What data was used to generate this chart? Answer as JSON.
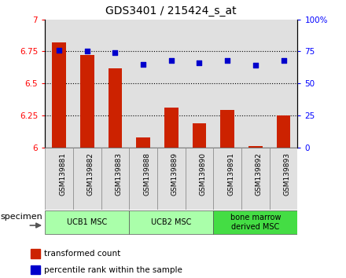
{
  "title": "GDS3401 / 215424_s_at",
  "categories": [
    "GSM139881",
    "GSM139882",
    "GSM139883",
    "GSM139888",
    "GSM139889",
    "GSM139890",
    "GSM139891",
    "GSM139892",
    "GSM139893"
  ],
  "bar_values": [
    6.82,
    6.72,
    6.62,
    6.08,
    6.31,
    6.19,
    6.29,
    6.01,
    6.25
  ],
  "scatter_values": [
    76,
    75,
    74,
    65,
    68,
    66,
    68,
    64,
    68
  ],
  "bar_color": "#cc2200",
  "scatter_color": "#0000cc",
  "ylim_left": [
    6.0,
    7.0
  ],
  "ylim_right": [
    0,
    100
  ],
  "yticks_left": [
    6.0,
    6.25,
    6.5,
    6.75,
    7.0
  ],
  "yticks_right": [
    0,
    25,
    50,
    75,
    100
  ],
  "ytick_labels_left": [
    "6",
    "6.25",
    "6.5",
    "6.75",
    "7"
  ],
  "ytick_labels_right": [
    "0",
    "25",
    "50",
    "75",
    "100%"
  ],
  "groups": [
    {
      "label": "UCB1 MSC",
      "start": 0,
      "end": 3,
      "color": "#aaffaa"
    },
    {
      "label": "UCB2 MSC",
      "start": 3,
      "end": 6,
      "color": "#aaffaa"
    },
    {
      "label": "bone marrow\nderived MSC",
      "start": 6,
      "end": 9,
      "color": "#44dd44"
    }
  ],
  "legend_bar_label": "transformed count",
  "legend_scatter_label": "percentile rank within the sample",
  "specimen_label": "specimen",
  "cell_bg_color": "#e0e0e0",
  "dotted_lines": [
    6.25,
    6.5,
    6.75
  ],
  "bar_width": 0.5
}
